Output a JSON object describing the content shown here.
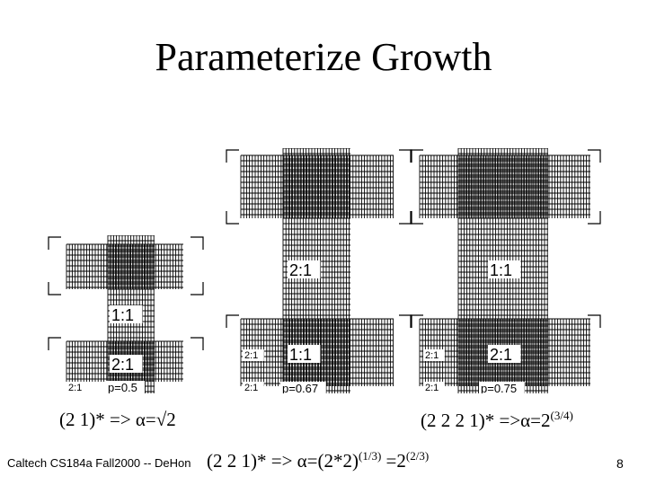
{
  "title": "Parameterize Growth",
  "figures": [
    {
      "labels": {
        "top": "",
        "mid": "1:1",
        "low": "2:1",
        "left_mid": "",
        "left_low": "2:1",
        "p": "p=0.5"
      }
    },
    {
      "labels": {
        "top": "2:1",
        "mid": "",
        "low": "1:1",
        "left_mid": "2:1",
        "left_low": "2:1",
        "p": "p=0.67"
      }
    },
    {
      "labels": {
        "top": "1:1",
        "mid": "",
        "low": "2:1",
        "left_mid": "2:1",
        "left_low": "2:1",
        "p": "p=0.75"
      }
    }
  ],
  "captions": {
    "left": {
      "text": "(2 1)* => α=√2"
    },
    "middle": {
      "base": "(2 2 1)* => α=(2*2)",
      "exp1": "(1/3)",
      "mid": " =2",
      "exp2": "(2/3)"
    },
    "right": {
      "base": "(2 2 2 1)* =>α=2",
      "exp": "(3/4)"
    }
  },
  "footer": "Caltech CS184a Fall2000 -- DeHon",
  "page_number": "8"
}
